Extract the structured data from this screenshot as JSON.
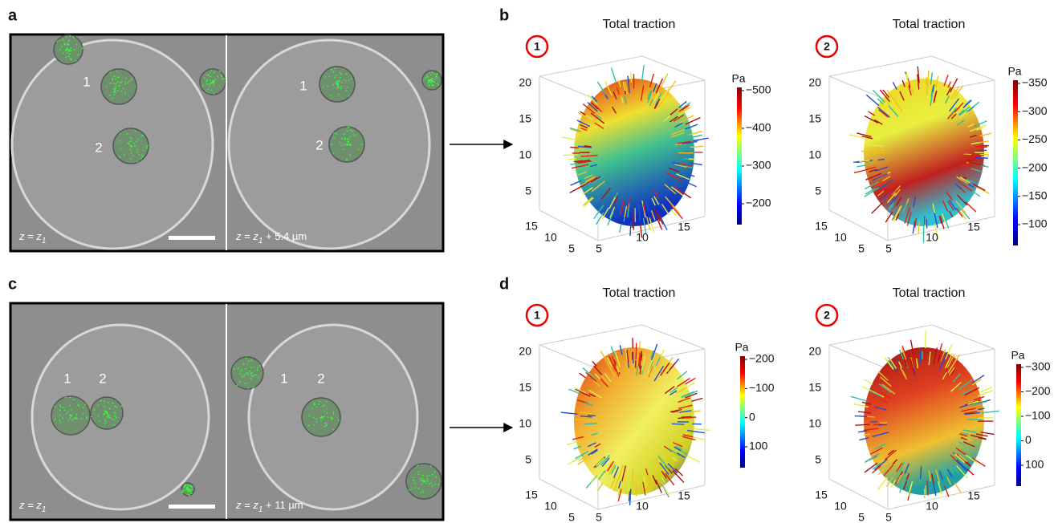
{
  "panel_a": {
    "label": "a",
    "image_left": {
      "cell_labels": [
        "1",
        "2"
      ],
      "caption": "z = z",
      "caption_sub": "1"
    },
    "image_right": {
      "cell_labels": [
        "1",
        "2"
      ],
      "caption": "z = z",
      "caption_sub": "1",
      "caption_suffix": " + 5.4 µm"
    }
  },
  "panel_b": {
    "label": "b",
    "plots": [
      {
        "marker": "1",
        "title": "Total traction",
        "z_ticks": [
          20,
          15,
          10,
          5
        ],
        "x_ticks": [
          15,
          10,
          5
        ],
        "y_ticks": [
          5,
          10,
          15
        ],
        "colorbar": {
          "unit": "Pa",
          "ticks": [
            "−500",
            "−400",
            "−300",
            "−200"
          ]
        }
      },
      {
        "marker": "2",
        "title": "Total traction",
        "z_ticks": [
          20,
          15,
          10,
          5
        ],
        "x_ticks": [
          15,
          10,
          5
        ],
        "y_ticks": [
          5,
          10,
          15
        ],
        "colorbar": {
          "unit": "Pa",
          "ticks": [
            "−350",
            "−300",
            "−250",
            "−200",
            "−150",
            "−100"
          ]
        }
      }
    ]
  },
  "panel_c": {
    "label": "c",
    "image_left": {
      "cell_labels": [
        "1",
        "2"
      ],
      "caption": "z = z",
      "caption_sub": "1"
    },
    "image_right": {
      "cell_labels": [
        "1",
        "2"
      ],
      "caption": "z = z",
      "caption_sub": "1",
      "caption_suffix": " + 11 µm"
    }
  },
  "panel_d": {
    "label": "d",
    "plots": [
      {
        "marker": "1",
        "title": "Total traction",
        "z_ticks": [
          20,
          15,
          10,
          5
        ],
        "x_ticks": [
          15,
          10,
          5
        ],
        "y_ticks": [
          5,
          10,
          15
        ],
        "colorbar": {
          "unit": "Pa",
          "ticks": [
            "−200",
            "−100",
            "0",
            "100"
          ]
        }
      },
      {
        "marker": "2",
        "title": "Total traction",
        "z_ticks": [
          20,
          15,
          10,
          5
        ],
        "x_ticks": [
          15,
          10,
          5
        ],
        "y_ticks": [
          5,
          10,
          15
        ],
        "colorbar": {
          "unit": "Pa",
          "ticks": [
            "−300",
            "−200",
            "−100",
            "0",
            "100"
          ]
        }
      }
    ]
  }
}
